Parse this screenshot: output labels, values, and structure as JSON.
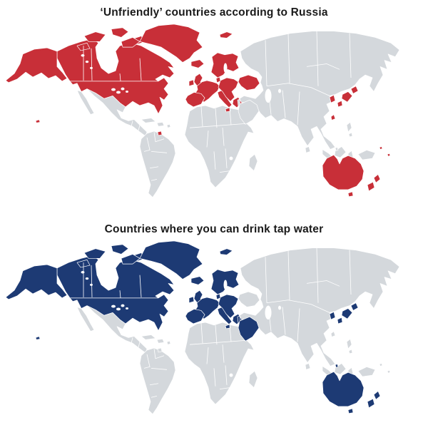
{
  "page": {
    "background": "#ffffff"
  },
  "base": {
    "land_color": "#d4d8dc",
    "border_color": "#ffffff",
    "ocean_color": "#ffffff",
    "title_color": "#1a1a1a"
  },
  "maps": [
    {
      "id": "russia-unfriendly",
      "title": "‘Unfriendly’ countries according to Russia",
      "highlight_color": "#c82f38",
      "highlighted_regions": [
        "usa",
        "hawaii",
        "alaska",
        "canada",
        "arctic-islands",
        "greenland",
        "french-guiana",
        "iceland",
        "uk",
        "ireland",
        "svalbard",
        "scandinavia",
        "denmark",
        "europe-west",
        "iberia",
        "italy",
        "europe-central",
        "greece",
        "ukraine",
        "japan",
        "south-korea",
        "taiwan",
        "australia",
        "tasmania",
        "new-zealand",
        "micronesia"
      ]
    },
    {
      "id": "tap-water",
      "title": "Countries where you can drink tap water",
      "highlight_color": "#1d3a74",
      "highlighted_regions": [
        "usa",
        "hawaii",
        "alaska",
        "canada",
        "arctic-islands",
        "greenland",
        "iceland",
        "uk",
        "ireland",
        "svalbard",
        "scandinavia",
        "denmark",
        "europe-west",
        "iberia",
        "italy",
        "europe-central",
        "greece",
        "israel",
        "saudi-arabia",
        "japan",
        "south-korea",
        "singapore",
        "australia",
        "tasmania",
        "new-zealand"
      ]
    }
  ]
}
